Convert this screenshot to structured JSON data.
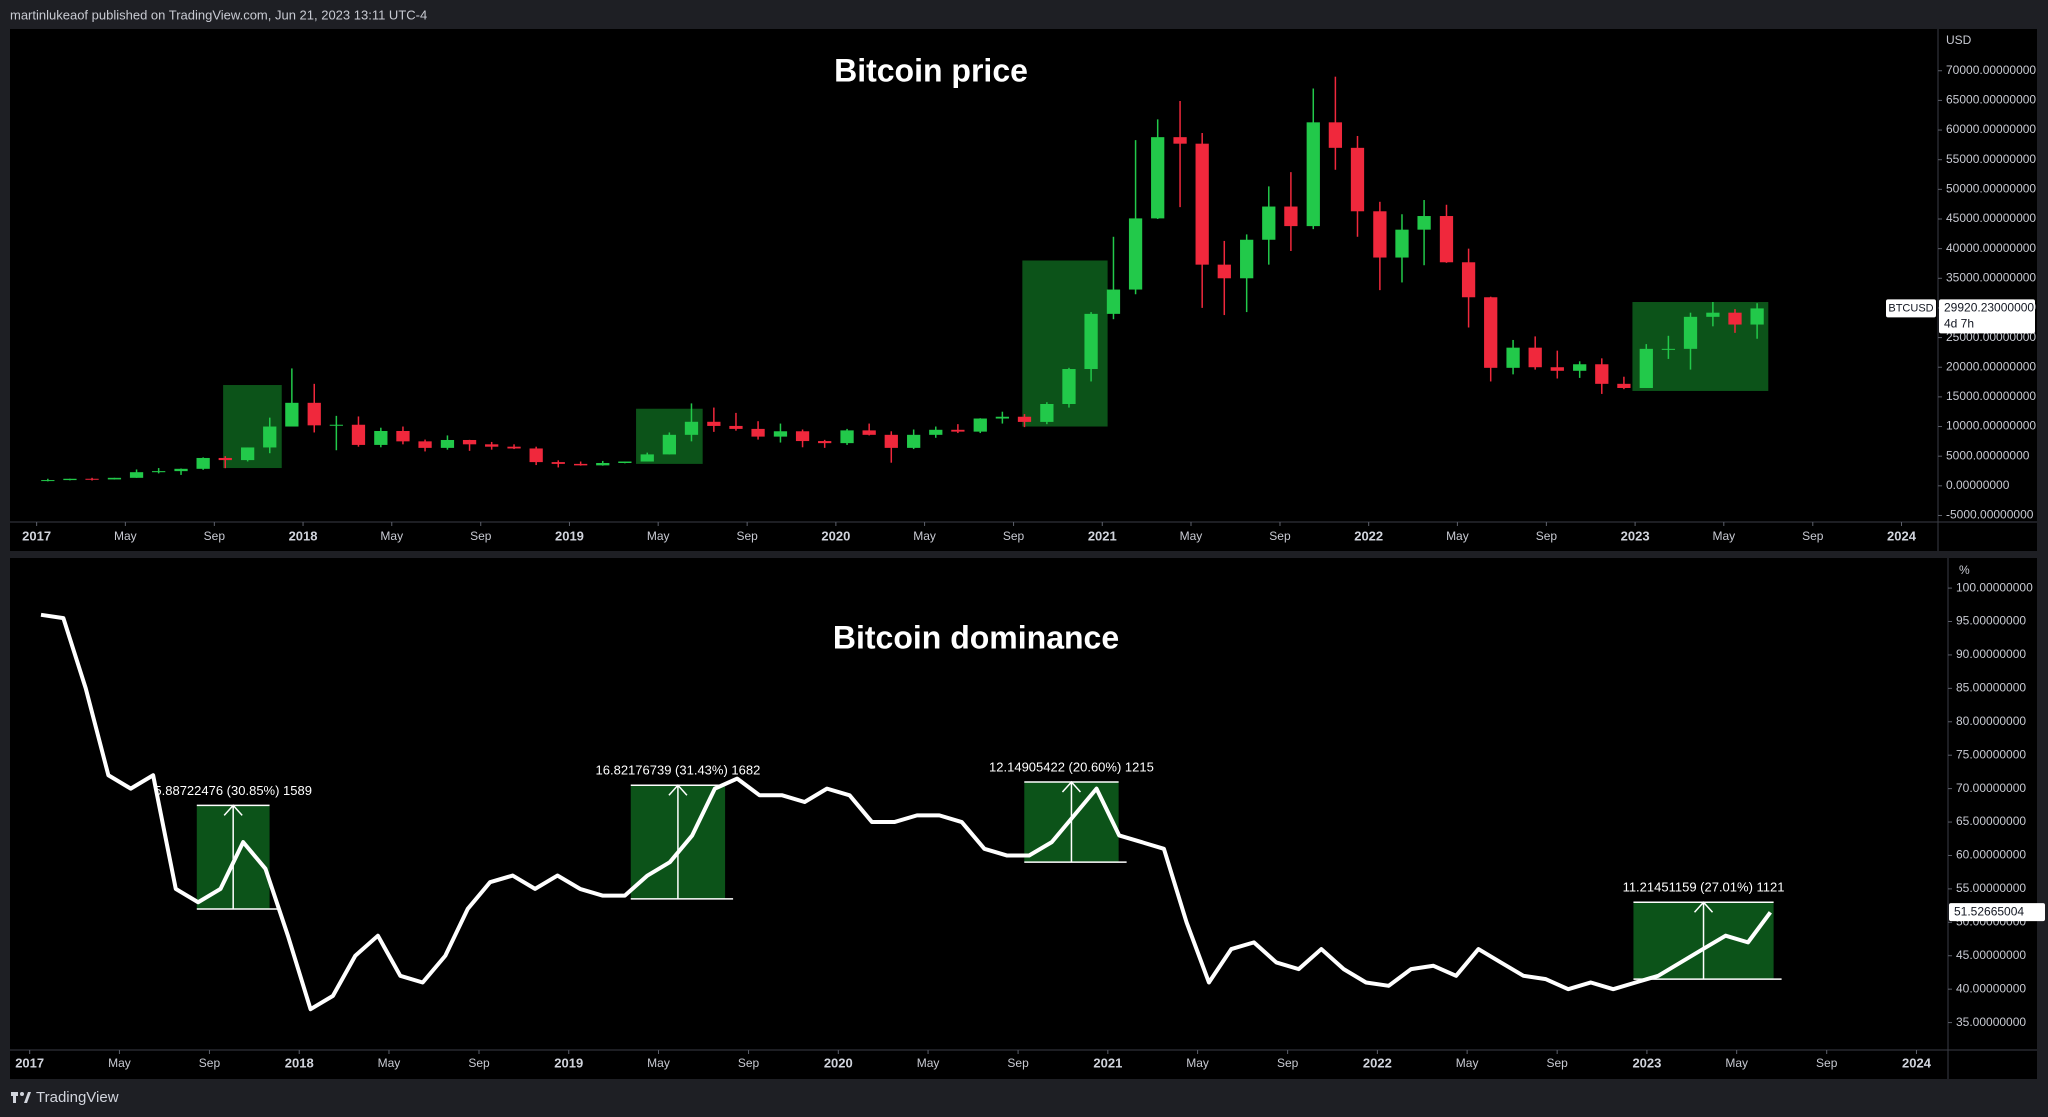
{
  "header": {
    "byline": "martinlukeaof published on TradingView.com, Jun 21, 2023 13:11 UTC-4"
  },
  "footer": {
    "brand": "TradingView"
  },
  "chart_data": [
    {
      "type": "candlestick",
      "title": "Bitcoin price",
      "axis_unit": "USD",
      "up_color": "#22c94a",
      "down_color": "#f0283c",
      "box_color": "#0d5c1c",
      "x": [
        2017.042,
        2017.125,
        2017.208,
        2017.292,
        2017.375,
        2017.458,
        2017.542,
        2017.625,
        2017.708,
        2017.792,
        2017.875,
        2017.958,
        2018.042,
        2018.125,
        2018.208,
        2018.292,
        2018.375,
        2018.458,
        2018.542,
        2018.625,
        2018.708,
        2018.792,
        2018.875,
        2018.958,
        2019.042,
        2019.125,
        2019.208,
        2019.292,
        2019.375,
        2019.458,
        2019.542,
        2019.625,
        2019.708,
        2019.792,
        2019.875,
        2019.958,
        2020.042,
        2020.125,
        2020.208,
        2020.292,
        2020.375,
        2020.458,
        2020.542,
        2020.625,
        2020.708,
        2020.792,
        2020.875,
        2020.958,
        2021.042,
        2021.125,
        2021.208,
        2021.292,
        2021.375,
        2021.458,
        2021.542,
        2021.625,
        2021.708,
        2021.792,
        2021.875,
        2021.958,
        2022.042,
        2022.125,
        2022.208,
        2022.292,
        2022.375,
        2022.458,
        2022.542,
        2022.625,
        2022.708,
        2022.792,
        2022.875,
        2022.958,
        2023.042,
        2023.125,
        2023.208,
        2023.292,
        2023.375,
        2023.458
      ],
      "open": [
        963,
        970,
        1190,
        1080,
        1350,
        2300,
        2480,
        2870,
        4700,
        4340,
        6470,
        10000,
        14000,
        10200,
        10300,
        6900,
        9250,
        7500,
        6400,
        7730,
        7000,
        6600,
        6300,
        4000,
        3700,
        3450,
        3850,
        4100,
        5300,
        8600,
        10800,
        10100,
        9600,
        8300,
        9200,
        7550,
        7200,
        9350,
        8600,
        6400,
        8600,
        9450,
        9140,
        11350,
        11650,
        10780,
        13800,
        19700,
        29000,
        33100,
        45100,
        58800,
        57700,
        37300,
        35000,
        41500,
        47100,
        43800,
        61300,
        57000,
        46300,
        38500,
        43200,
        45500,
        37700,
        31800,
        19900,
        23300,
        20000,
        19400,
        20500,
        17200,
        16500,
        23100,
        23100,
        28500,
        29200,
        27200
      ],
      "high": [
        1190,
        1200,
        1350,
        1350,
        2760,
        3000,
        2920,
        4800,
        5000,
        6470,
        11500,
        19800,
        17200,
        11800,
        11700,
        9800,
        10000,
        7800,
        8500,
        7760,
        7400,
        7000,
        6600,
        4300,
        4100,
        4200,
        4100,
        5600,
        9000,
        13900,
        13200,
        12300,
        10900,
        10500,
        9500,
        7750,
        9600,
        10500,
        9200,
        9500,
        10000,
        10400,
        11400,
        12500,
        12100,
        14100,
        19900,
        29300,
        42000,
        58300,
        61800,
        64900,
        59500,
        41300,
        42400,
        50500,
        52900,
        67000,
        69000,
        59000,
        47900,
        45800,
        48200,
        47400,
        40000,
        31900,
        24600,
        25200,
        22800,
        21000,
        21500,
        18400,
        23900,
        25300,
        29200,
        31000,
        29800,
        30800
      ],
      "low": [
        750,
        920,
        900,
        1060,
        1350,
        2100,
        1840,
        2700,
        2970,
        4110,
        5500,
        10700,
        9000,
        6000,
        6600,
        6500,
        7000,
        5800,
        6100,
        5900,
        6100,
        6200,
        3500,
        3100,
        3400,
        3400,
        3800,
        4100,
        5300,
        7500,
        9100,
        9300,
        7800,
        7300,
        6500,
        6400,
        6900,
        8500,
        3900,
        6200,
        8100,
        8900,
        8900,
        10500,
        9900,
        10400,
        13200,
        17600,
        28100,
        32300,
        45000,
        47000,
        30000,
        28800,
        29300,
        37300,
        39600,
        43300,
        53300,
        42000,
        33000,
        34300,
        37200,
        37600,
        26700,
        17600,
        18800,
        19600,
        18100,
        18200,
        15500,
        16300,
        16500,
        21400,
        19600,
        26900,
        25800,
        24800
      ],
      "close": [
        970,
        1190,
        1080,
        1350,
        2300,
        2480,
        2870,
        4700,
        4340,
        6470,
        10000,
        14000,
        10200,
        10300,
        6900,
        9250,
        7500,
        6400,
        7730,
        7000,
        6600,
        6300,
        4000,
        3700,
        3450,
        3850,
        4100,
        5300,
        8600,
        10800,
        10100,
        9600,
        8300,
        9200,
        7550,
        7200,
        9350,
        8600,
        6400,
        8600,
        9450,
        9140,
        11350,
        11650,
        10780,
        13800,
        19700,
        29000,
        33100,
        45100,
        58800,
        57700,
        37300,
        35000,
        41500,
        47100,
        43800,
        61300,
        57000,
        46300,
        38500,
        43200,
        45500,
        37700,
        31800,
        19900,
        23300,
        20000,
        19400,
        20500,
        17200,
        16500,
        23100,
        23100,
        28500,
        29200,
        27200,
        29920
      ],
      "boxes": [
        {
          "x": [
            2017.7,
            2017.92
          ],
          "y": [
            3000,
            17000
          ]
        },
        {
          "x": [
            2019.25,
            2019.5
          ],
          "y": [
            3700,
            13000
          ]
        },
        {
          "x": [
            2020.7,
            2021.02
          ],
          "y": [
            10000,
            38000
          ]
        },
        {
          "x": [
            2022.99,
            2023.5
          ],
          "y": [
            16000,
            31000
          ]
        }
      ],
      "last_price": {
        "symbol": "BTCUSD",
        "value": 29920.23,
        "label": "29920.23000000",
        "countdown": "4d 7h"
      },
      "xlim": [
        2016.9,
        2024.137
      ],
      "ylim": [
        -6100,
        77040
      ],
      "xticks": [
        2017,
        {
          "value": 2017.333,
          "label": "May"
        },
        {
          "value": 2017.667,
          "label": "Sep"
        },
        2018,
        {
          "value": 2018.333,
          "label": "May"
        },
        {
          "value": 2018.667,
          "label": "Sep"
        },
        2019,
        {
          "value": 2019.333,
          "label": "May"
        },
        {
          "value": 2019.667,
          "label": "Sep"
        },
        2020,
        {
          "value": 2020.333,
          "label": "May"
        },
        {
          "value": 2020.667,
          "label": "Sep"
        },
        2021,
        {
          "value": 2021.333,
          "label": "May"
        },
        {
          "value": 2021.667,
          "label": "Sep"
        },
        2022,
        {
          "value": 2022.333,
          "label": "May"
        },
        {
          "value": 2022.667,
          "label": "Sep"
        },
        2023,
        {
          "value": 2023.333,
          "label": "May"
        },
        {
          "value": 2023.667,
          "label": "Sep"
        },
        2024
      ],
      "yticks": [
        {
          "value": -5000,
          "label": "-5000.00000000"
        },
        {
          "value": 0,
          "label": "0.00000000"
        },
        {
          "value": 5000,
          "label": "5000.00000000"
        },
        {
          "value": 10000,
          "label": "10000.00000000"
        },
        {
          "value": 15000,
          "label": "15000.00000000"
        },
        {
          "value": 20000,
          "label": "20000.00000000"
        },
        {
          "value": 25000,
          "label": "25000.00000000"
        },
        {
          "value": 30000,
          "label": "30000.00000000"
        },
        {
          "value": 35000,
          "label": "35000.00000000"
        },
        {
          "value": 40000,
          "label": "40000.00000000"
        },
        {
          "value": 45000,
          "label": "45000.00000000"
        },
        {
          "value": 50000,
          "label": "50000.00000000"
        },
        {
          "value": 55000,
          "label": "55000.00000000"
        },
        {
          "value": 60000,
          "label": "60000.00000000"
        },
        {
          "value": 65000,
          "label": "65000.00000000"
        },
        {
          "value": 70000,
          "label": "70000.00000000"
        }
      ]
    },
    {
      "type": "line",
      "title": "Bitcoin dominance",
      "axis_unit": "%",
      "color": "#ffffff",
      "box_color": "#0d5c1c",
      "x": [
        2017.042,
        2017.125,
        2017.208,
        2017.292,
        2017.375,
        2017.458,
        2017.542,
        2017.625,
        2017.708,
        2017.792,
        2017.875,
        2017.958,
        2018.042,
        2018.125,
        2018.208,
        2018.292,
        2018.375,
        2018.458,
        2018.542,
        2018.625,
        2018.708,
        2018.792,
        2018.875,
        2018.958,
        2019.042,
        2019.125,
        2019.208,
        2019.292,
        2019.375,
        2019.458,
        2019.542,
        2019.625,
        2019.708,
        2019.792,
        2019.875,
        2019.958,
        2020.042,
        2020.125,
        2020.208,
        2020.292,
        2020.375,
        2020.458,
        2020.542,
        2020.625,
        2020.708,
        2020.792,
        2020.875,
        2020.958,
        2021.042,
        2021.125,
        2021.208,
        2021.292,
        2021.375,
        2021.458,
        2021.542,
        2021.625,
        2021.708,
        2021.792,
        2021.875,
        2021.958,
        2022.042,
        2022.125,
        2022.208,
        2022.292,
        2022.375,
        2022.458,
        2022.542,
        2022.625,
        2022.708,
        2022.792,
        2022.875,
        2022.958,
        2023.042,
        2023.125,
        2023.208,
        2023.292,
        2023.375,
        2023.458
      ],
      "values": [
        96,
        95.5,
        85,
        72,
        70,
        72,
        55,
        53,
        55,
        62,
        58,
        48,
        37,
        39,
        45,
        48,
        42,
        41,
        45,
        52,
        56,
        57,
        55,
        57,
        55,
        54,
        54,
        57,
        59,
        63,
        70,
        71.5,
        69,
        69,
        68,
        70,
        69,
        65,
        65,
        66,
        66,
        65,
        61,
        60,
        60,
        62,
        66,
        70,
        63,
        62,
        61,
        50,
        41,
        46,
        47,
        44,
        43,
        46,
        43,
        41,
        40.5,
        43,
        43.5,
        42,
        46,
        44,
        42,
        41.5,
        40,
        41,
        40,
        41,
        42,
        44,
        46,
        48,
        47,
        51.5
      ],
      "boxes": [
        {
          "x": [
            2017.62,
            2017.89
          ],
          "y": [
            52,
            67.5
          ],
          "label": "5.88722476 (30.85%) 1589"
        },
        {
          "x": [
            2019.23,
            2019.58
          ],
          "y": [
            53.5,
            70.5
          ],
          "label": "16.82176739 (31.43%) 1682"
        },
        {
          "x": [
            2020.69,
            2021.04
          ],
          "y": [
            59,
            71
          ],
          "label": "12.14905422 (20.60%) 1215"
        },
        {
          "x": [
            2022.95,
            2023.47
          ],
          "y": [
            41.5,
            53
          ],
          "label": "11.21451159 (27.01%) 1121"
        }
      ],
      "last_price": {
        "value": 51.52665004,
        "label": "51.52665004"
      },
      "xlim": [
        2016.927,
        2024.117
      ],
      "ylim": [
        30.9,
        104.5
      ],
      "xticks": [
        2017,
        {
          "value": 2017.333,
          "label": "May"
        },
        {
          "value": 2017.667,
          "label": "Sep"
        },
        2018,
        {
          "value": 2018.333,
          "label": "May"
        },
        {
          "value": 2018.667,
          "label": "Sep"
        },
        2019,
        {
          "value": 2019.333,
          "label": "May"
        },
        {
          "value": 2019.667,
          "label": "Sep"
        },
        2020,
        {
          "value": 2020.333,
          "label": "May"
        },
        {
          "value": 2020.667,
          "label": "Sep"
        },
        2021,
        {
          "value": 2021.333,
          "label": "May"
        },
        {
          "value": 2021.667,
          "label": "Sep"
        },
        2022,
        {
          "value": 2022.333,
          "label": "May"
        },
        {
          "value": 2022.667,
          "label": "Sep"
        },
        2023,
        {
          "value": 2023.333,
          "label": "May"
        },
        {
          "value": 2023.667,
          "label": "Sep"
        },
        2024
      ],
      "yticks": [
        {
          "value": 35,
          "label": "35.00000000"
        },
        {
          "value": 40,
          "label": "40.00000000"
        },
        {
          "value": 45,
          "label": "45.00000000"
        },
        {
          "value": 50,
          "label": "50.00000000"
        },
        {
          "value": 55,
          "label": "55.00000000"
        },
        {
          "value": 60,
          "label": "60.00000000"
        },
        {
          "value": 65,
          "label": "65.00000000"
        },
        {
          "value": 70,
          "label": "70.00000000"
        },
        {
          "value": 75,
          "label": "75.00000000"
        },
        {
          "value": 80,
          "label": "80.00000000"
        },
        {
          "value": 85,
          "label": "85.00000000"
        },
        {
          "value": 90,
          "label": "90.00000000"
        },
        {
          "value": 95,
          "label": "95.00000000"
        },
        {
          "value": 100,
          "label": "100.00000000"
        }
      ]
    }
  ]
}
